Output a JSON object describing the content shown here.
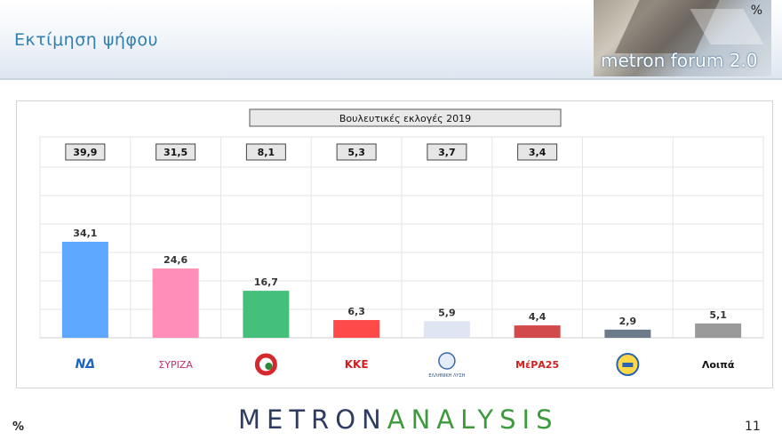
{
  "header": {
    "title": "Εκτίμηση ψήφου",
    "forum_label": "metron forum 2.0",
    "forum_unit": "%"
  },
  "footer": {
    "unit": "%",
    "brand_part1": "METRON",
    "brand_part2": "ANALYSIS",
    "page_number": "11"
  },
  "chart_data": {
    "type": "bar",
    "title": "Βουλευτικές εκλογές 2019",
    "categories": [
      "ΝΔ",
      "ΣΥΡΙΖΑ",
      "ΚΙΝΑΛ",
      "ΚΚΕ",
      "Ελληνική Λύση",
      "ΜέΡΑ25",
      "Νίκη",
      "Λοιπά"
    ],
    "logo_labels": [
      "ΝΔ",
      "ΣΥΡΙΖΑ",
      "",
      "ΚΚΕ",
      "ΕΛΛΗΝΙΚΗ ΛΥΣΗ",
      "ΜέΡΑ25",
      "",
      "Λοιπά"
    ],
    "series": [
      {
        "name": "Εκτίμηση ψήφου",
        "values": [
          34.1,
          24.6,
          16.7,
          6.3,
          5.9,
          4.4,
          2.9,
          5.1
        ]
      },
      {
        "name": "Βουλευτικές εκλογές 2019",
        "values": [
          39.9,
          31.5,
          8.1,
          5.3,
          3.7,
          3.4,
          null,
          null
        ]
      }
    ],
    "value_labels": [
      "34,1",
      "24,6",
      "16,7",
      "6,3",
      "5,9",
      "4,4",
      "2,9",
      "5,1"
    ],
    "election_labels": [
      "39,9",
      "31,5",
      "8,1",
      "5,3",
      "3,7",
      "3,4",
      "",
      ""
    ],
    "colors": [
      "#5ea8ff",
      "#ff8fb8",
      "#45c07a",
      "#ff4a4a",
      "#dfe5f3",
      "#d24a4a",
      "#6c7a8a",
      "#9a9a9a"
    ],
    "ylim": [
      0,
      40
    ],
    "unit": "%"
  }
}
